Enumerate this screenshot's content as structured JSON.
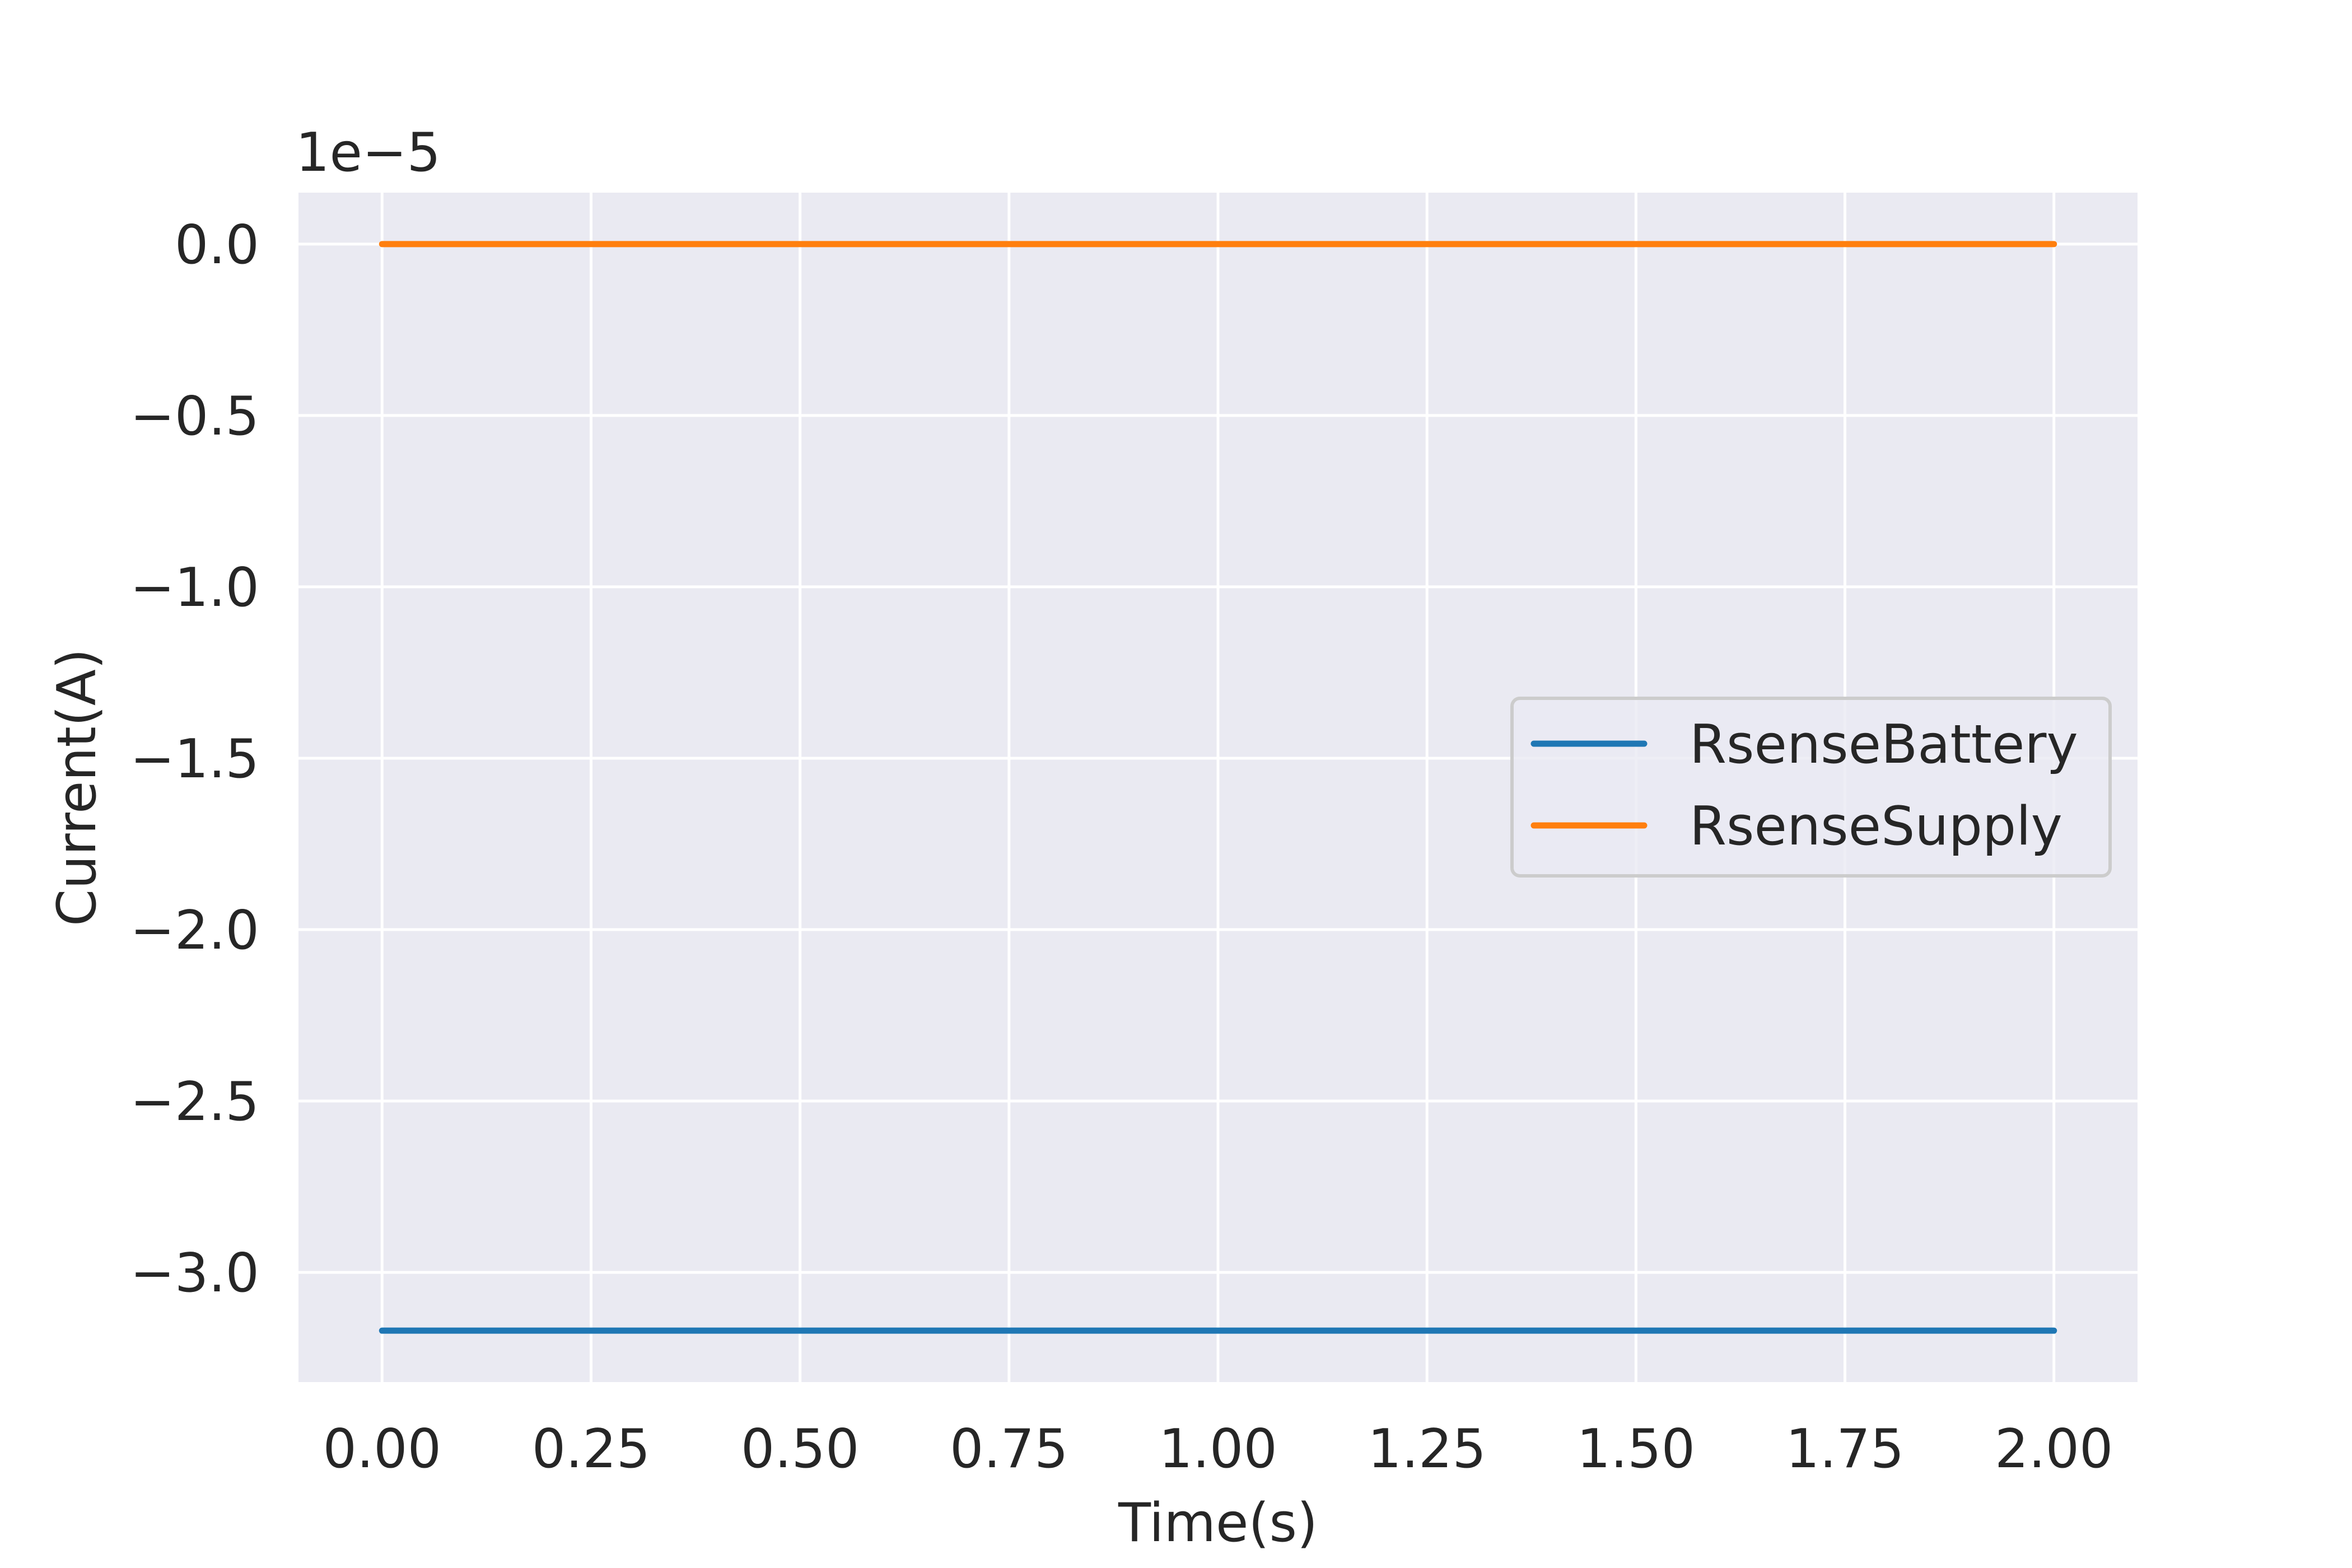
{
  "chart_data": {
    "type": "line",
    "title": "",
    "xlabel": "Time(s)",
    "ylabel": "Current(A)",
    "y_offset_label": "1e−5",
    "y_scale_factor": 1e-05,
    "xlim": [
      -0.1,
      2.1
    ],
    "ylim": [
      -3.32e-05,
      1.5e-06
    ],
    "x_ticks": [
      0.0,
      0.25,
      0.5,
      0.75,
      1.0,
      1.25,
      1.5,
      1.75,
      2.0
    ],
    "x_tick_labels": [
      "0.00",
      "0.25",
      "0.50",
      "0.75",
      "1.00",
      "1.25",
      "1.50",
      "1.75",
      "2.00"
    ],
    "y_ticks": [
      0.0,
      -5e-06,
      -1e-05,
      -1.5e-05,
      -2e-05,
      -2.5e-05,
      -3e-05
    ],
    "y_tick_labels": [
      "0.0",
      "−0.5",
      "−1.0",
      "−1.5",
      "−2.0",
      "−2.5",
      "−3.0"
    ],
    "grid": true,
    "legend_position": "center-right",
    "series": [
      {
        "name": "RsenseBattery",
        "color": "#1f77b4",
        "x": [
          0.0,
          2.0
        ],
        "y": [
          -3.17e-05,
          -3.17e-05
        ]
      },
      {
        "name": "RsenseSupply",
        "color": "#ff7f0e",
        "x": [
          0.0,
          2.0
        ],
        "y": [
          0.0,
          0.0
        ]
      }
    ],
    "background_color": "#eaeaf2",
    "grid_color": "#ffffff"
  }
}
